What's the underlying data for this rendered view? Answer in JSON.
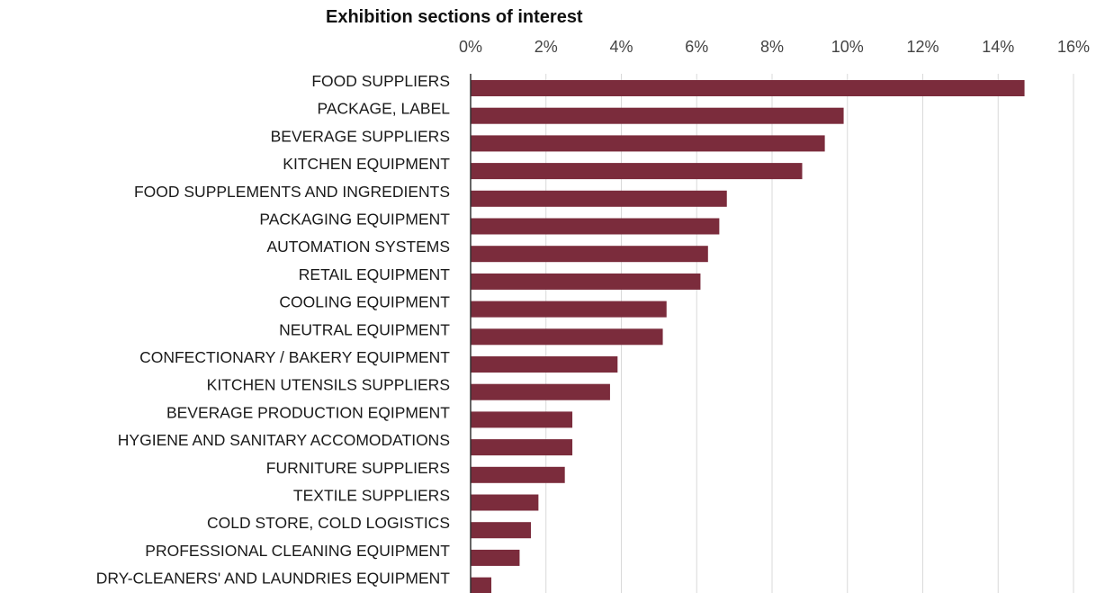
{
  "chart_data": {
    "type": "bar",
    "orientation": "horizontal",
    "title": "Exhibition sections of interest",
    "xlabel": "",
    "ylabel": "",
    "xlim": [
      0,
      16
    ],
    "x_ticks": [
      "0%",
      "2%",
      "4%",
      "6%",
      "8%",
      "10%",
      "12%",
      "14%",
      "16%"
    ],
    "x_tick_values": [
      0,
      2,
      4,
      6,
      8,
      10,
      12,
      14,
      16
    ],
    "grid": true,
    "bar_color": "#7b2c3c",
    "categories": [
      "FOOD SUPPLIERS",
      "PACKAGE, LABEL",
      "BEVERAGE SUPPLIERS",
      "KITCHEN EQUIPMENT",
      "FOOD SUPPLEMENTS AND INGREDIENTS",
      "PACKAGING EQUIPMENT",
      "AUTOMATION SYSTEMS",
      "RETAIL EQUIPMENT",
      "COOLING EQUIPMENT",
      "NEUTRAL EQUIPMENT",
      "CONFECTIONARY / BAKERY EQUIPMENT",
      "KITCHEN UTENSILS SUPPLIERS",
      "BEVERAGE PRODUCTION EQIPMENT",
      "HYGIENE AND SANITARY ACCOMODATIONS",
      "FURNITURE SUPPLIERS",
      "TEXTILE SUPPLIERS",
      "COLD STORE, COLD LOGISTICS",
      "PROFESSIONAL CLEANING EQUIPMENT",
      "DRY-CLEANERS' AND LAUNDRIES EQUIPMENT"
    ],
    "values": [
      14.7,
      9.9,
      9.4,
      8.8,
      6.8,
      6.6,
      6.3,
      6.1,
      5.2,
      5.1,
      3.9,
      3.7,
      2.7,
      2.7,
      2.5,
      1.8,
      1.6,
      1.3,
      0.55
    ]
  }
}
